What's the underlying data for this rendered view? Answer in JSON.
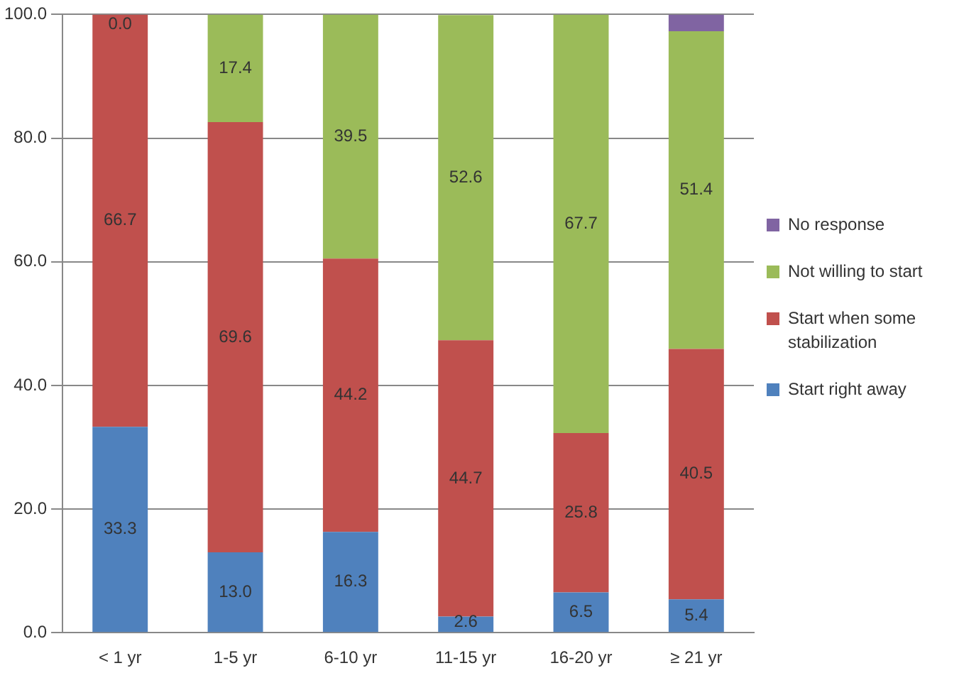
{
  "chart_data": {
    "type": "bar",
    "stacked": true,
    "categories": [
      "< 1 yr",
      "1-5 yr",
      "6-10 yr",
      "11-15 yr",
      "16-20 yr",
      "≥ 21 yr"
    ],
    "series": [
      {
        "name": "Start right away",
        "color": "#4f81bd",
        "values": [
          33.3,
          13.0,
          16.3,
          2.6,
          6.5,
          5.4
        ],
        "value_labels": [
          "33.3",
          "13.0",
          "16.3",
          "2.6",
          "6.5",
          "5.4"
        ]
      },
      {
        "name": "Start when some stabilization",
        "color": "#c0504d",
        "values": [
          66.7,
          69.6,
          44.2,
          44.7,
          25.8,
          40.5
        ],
        "value_labels": [
          "66.7",
          "69.6",
          "44.2",
          "44.7",
          "25.8",
          "40.5"
        ]
      },
      {
        "name": "Not willing to start",
        "color": "#9bbb59",
        "values": [
          0.0,
          17.4,
          39.5,
          52.6,
          67.7,
          51.4
        ],
        "value_labels": [
          "0.0",
          "17.4",
          "39.5",
          "52.6",
          "67.7",
          "51.4"
        ]
      },
      {
        "name": "No response",
        "color": "#8064a2",
        "values": [
          0,
          0,
          0,
          0,
          0,
          2.7
        ],
        "value_labels": [
          null,
          null,
          null,
          null,
          null,
          null
        ]
      }
    ],
    "ylim": [
      0,
      100
    ],
    "yticks": [
      {
        "value": 0,
        "label": "0.0"
      },
      {
        "value": 20,
        "label": "20.0"
      },
      {
        "value": 40,
        "label": "40.0"
      },
      {
        "value": 60,
        "label": "60.0"
      },
      {
        "value": 80,
        "label": "80.0"
      },
      {
        "value": 100,
        "label": "100.0"
      }
    ],
    "grid": "y",
    "legend": "right"
  }
}
